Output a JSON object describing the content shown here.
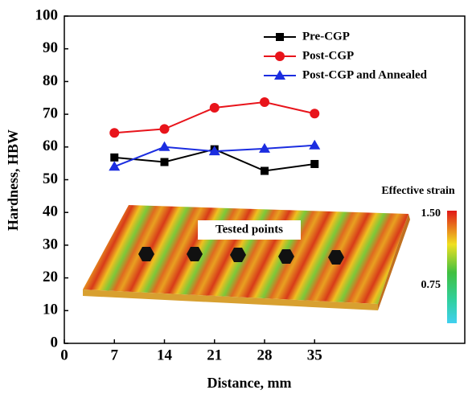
{
  "chart_data": {
    "type": "line",
    "x_label": "Distance, mm",
    "y_label": "Hardness, HBW",
    "x": [
      7,
      14,
      21,
      28,
      35
    ],
    "series": [
      {
        "name": "Pre-CGP",
        "color": "#000000",
        "marker": "square",
        "values": [
          56.8,
          55.4,
          59.3,
          52.7,
          54.8
        ]
      },
      {
        "name": "Post-CGP",
        "color": "#e8141b",
        "marker": "circle",
        "values": [
          64.3,
          65.5,
          72.0,
          73.7,
          70.2
        ]
      },
      {
        "name": "Post-CGP and Annealed",
        "color": "#1b2de0",
        "marker": "triangle",
        "values": [
          54.0,
          60.0,
          58.7,
          59.5,
          60.5
        ]
      }
    ],
    "xlim": [
      0,
      56
    ],
    "xticks": [
      0,
      7,
      14,
      21,
      28,
      35
    ],
    "ylim": [
      0,
      100
    ],
    "yticks": [
      0,
      10,
      20,
      30,
      40,
      50,
      60,
      70,
      80,
      90,
      100
    ],
    "grid": false,
    "legend": "upper right",
    "inset": {
      "label": "Tested points",
      "colorbar_title": "Effective strain",
      "colorbar_labels": [
        "1.50",
        "0.75"
      ]
    }
  }
}
